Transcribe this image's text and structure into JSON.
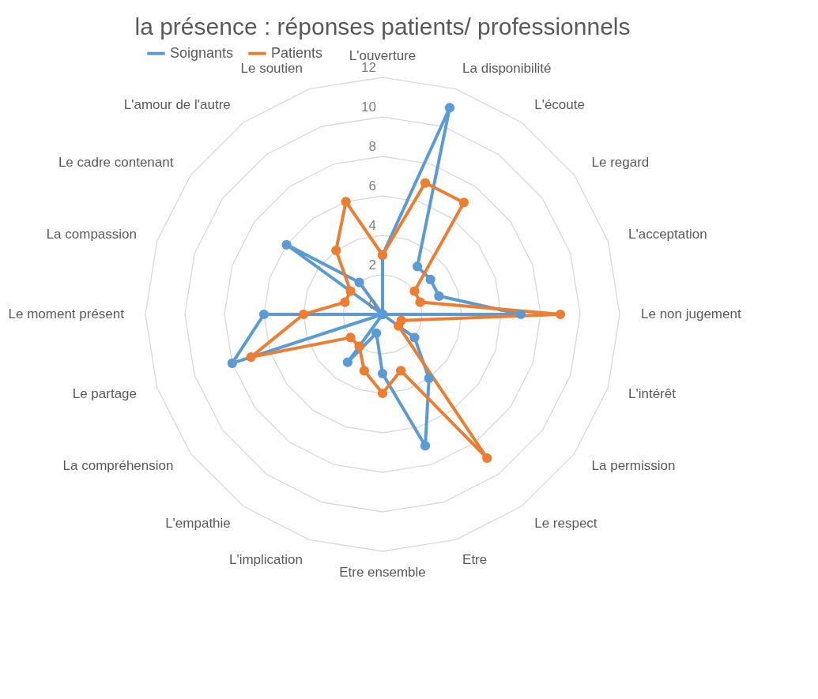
{
  "chart_data": {
    "type": "radar",
    "title": "la présence : réponses patients/ professionnels",
    "categories": [
      "L'ouverture",
      "La disponibilité",
      "L'écoute",
      "Le regard",
      "L'acceptation",
      "Le non jugement",
      "L'intérêt",
      "La permission",
      "Le respect",
      "Etre",
      "Etre ensemble",
      "L'implication",
      "L'empathie",
      "La compréhension",
      "Le partage",
      "Le moment présent",
      "La compassion",
      "Le cadre contenant",
      "L'amour de l'autre",
      "Le soutien"
    ],
    "series": [
      {
        "name": "Soignants",
        "color": "#5b9bd5",
        "values": [
          3,
          11,
          3,
          3,
          3,
          7,
          0,
          2,
          4,
          7,
          3,
          1,
          3,
          0,
          8,
          6,
          0,
          6,
          2,
          0
        ]
      },
      {
        "name": "Patients",
        "color": "#ed7d31",
        "values": [
          3,
          7,
          7,
          2,
          2,
          9,
          1,
          1,
          9,
          3,
          4,
          3,
          2,
          2,
          7,
          4,
          2,
          2,
          4,
          6
        ]
      }
    ],
    "ylim": [
      0,
      12
    ],
    "yticks": [
      0,
      2,
      4,
      6,
      8,
      10,
      12
    ],
    "grid": true,
    "legend": "top",
    "marker": "circle",
    "line_style": "solid"
  }
}
